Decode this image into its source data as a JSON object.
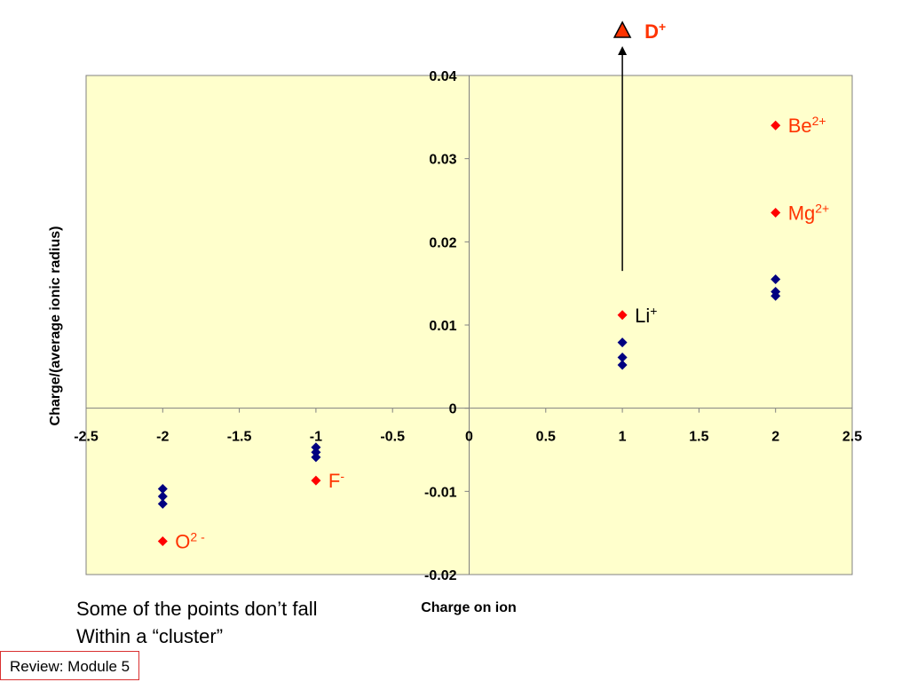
{
  "chart_data": {
    "type": "scatter",
    "xlabel": "Charge on ion",
    "ylabel": "Charge/(average ionic radius)",
    "xlim": [
      -2.5,
      2.5
    ],
    "ylim": [
      -0.02,
      0.04
    ],
    "x_ticks": [
      "-2.5",
      "-2",
      "-1.5",
      "-1",
      "-0.5",
      "0",
      "0.5",
      "1",
      "1.5",
      "2",
      "2.5"
    ],
    "y_ticks": [
      "0.04",
      "0.03",
      "0.02",
      "0.01",
      "0",
      "-0.01",
      "-0.02"
    ],
    "y_tick_values": [
      0.04,
      0.03,
      0.02,
      0.01,
      0,
      -0.01,
      -0.02
    ],
    "x_tick_values": [
      -2.5,
      -2,
      -1.5,
      -1,
      -0.5,
      0,
      0.5,
      1,
      1.5,
      2,
      2.5
    ],
    "grid": false,
    "plot_background": "#ffffcc",
    "series": [
      {
        "color": "#000080",
        "marker": "diamond",
        "points": [
          {
            "x": -2,
            "y": -0.0097
          },
          {
            "x": -2,
            "y": -0.0106
          },
          {
            "x": -2,
            "y": -0.0115
          },
          {
            "x": -1,
            "y": -0.0047
          },
          {
            "x": -1,
            "y": -0.0053
          },
          {
            "x": -1,
            "y": -0.0059
          },
          {
            "x": 1,
            "y": 0.0079
          },
          {
            "x": 1,
            "y": 0.0061
          },
          {
            "x": 1,
            "y": 0.0052
          },
          {
            "x": 2,
            "y": 0.0155
          },
          {
            "x": 2,
            "y": 0.014
          },
          {
            "x": 2,
            "y": 0.0135
          }
        ]
      },
      {
        "color": "#ff0000",
        "marker": "diamond",
        "points": [
          {
            "x": -2,
            "y": -0.016,
            "label": "O",
            "sup": "2 -",
            "label_color": "#ff3300"
          },
          {
            "x": -1,
            "y": -0.0087,
            "label": "F",
            "sup": "-",
            "label_color": "#ff3300"
          },
          {
            "x": 1,
            "y": 0.0112,
            "label": "Li",
            "sup": "+",
            "label_color": "#000000"
          },
          {
            "x": 2,
            "y": 0.0235,
            "label": "Mg",
            "sup": "2+",
            "label_color": "#ff3300"
          },
          {
            "x": 2,
            "y": 0.034,
            "label": "Be",
            "sup": "2+",
            "label_color": "#ff3300"
          }
        ]
      }
    ],
    "annotations": [
      {
        "type": "arrow",
        "x": 1,
        "y_from": 0.0165,
        "direction": "up",
        "target_label": "D",
        "target_sup": "+",
        "target_color": "#ff3300",
        "target_marker": "triangle"
      }
    ]
  },
  "note": {
    "line1": "Some of the points don’t fall",
    "line2": "Within a “cluster”"
  },
  "footer": {
    "label": "Review: Module 5"
  }
}
